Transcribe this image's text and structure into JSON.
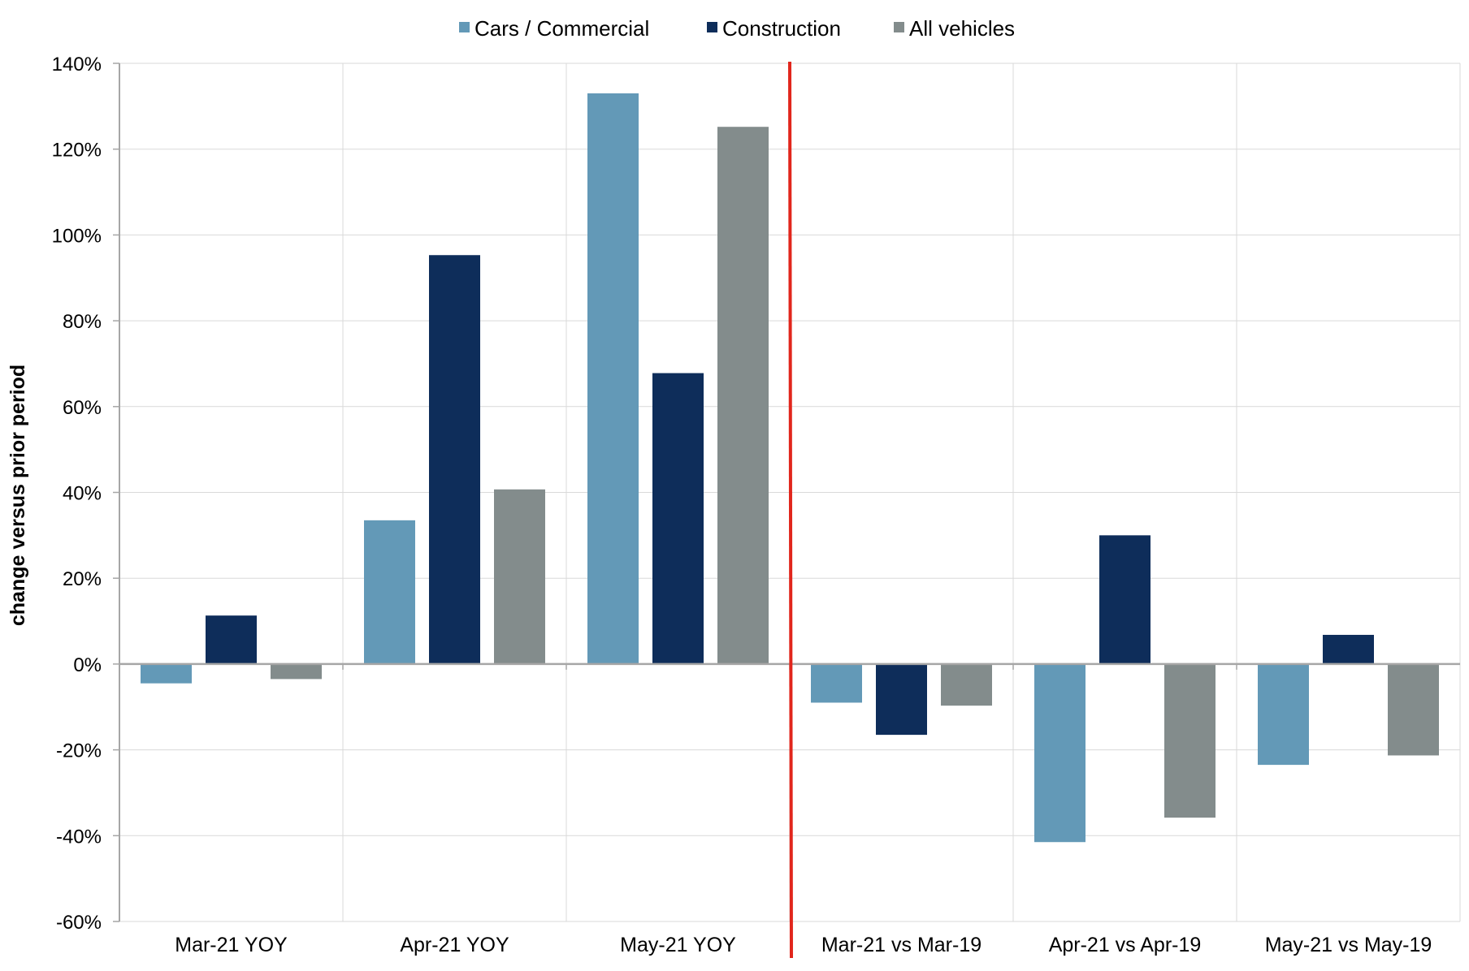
{
  "chart_data": {
    "type": "bar",
    "ylabel": "change versus prior period",
    "ylim": [
      -60,
      140
    ],
    "ytick_step": 20,
    "ytick_suffix": "%",
    "grid": true,
    "legend_position": "top-center",
    "categories": [
      "Mar-21 YOY",
      "Apr-21 YOY",
      "May-21 YOY",
      "Mar-21 vs Mar-19",
      "Apr-21 vs Apr-19",
      "May-21 vs May-19"
    ],
    "series": [
      {
        "name": "Cars / Commercial",
        "color": "#6399b7",
        "values": [
          -4.5,
          33.5,
          133,
          -9,
          -41.5,
          -23.5
        ]
      },
      {
        "name": "Construction",
        "color": "#0e2d5a",
        "values": [
          11.3,
          95.3,
          67.8,
          -16.5,
          30,
          6.8
        ]
      },
      {
        "name": "All vehicles",
        "color": "#838c8c",
        "values": [
          -3.5,
          40.7,
          125.2,
          -9.7,
          -35.8,
          -21.3
        ]
      }
    ],
    "divider": {
      "after_category_index": 2,
      "color": "#e1261c"
    }
  }
}
